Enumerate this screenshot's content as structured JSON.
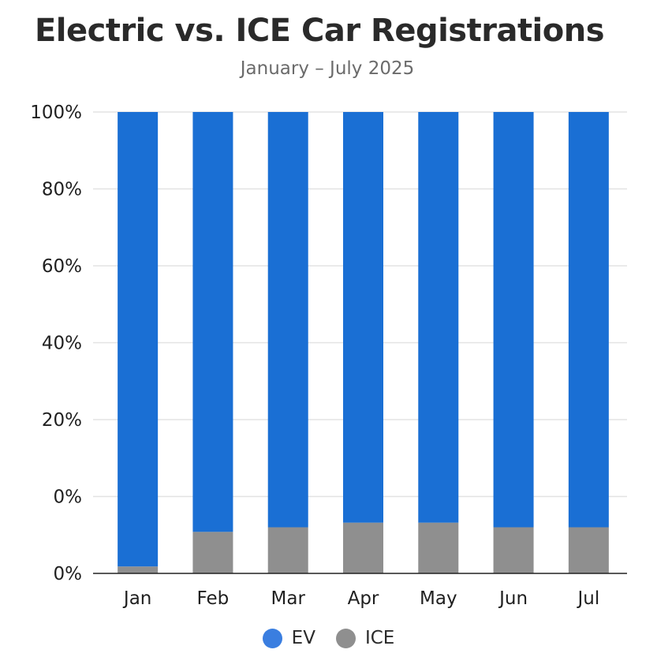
{
  "chart_data": {
    "type": "bar",
    "stacked": true,
    "title": "Electric vs. ICE Car Registrations",
    "subtitle": "January – July 2025",
    "categories": [
      "Jan",
      "Feb",
      "Mar",
      "Apr",
      "May",
      "Jun",
      "Jul"
    ],
    "series": [
      {
        "name": "ICE",
        "color": "#8f8f8f",
        "values": [
          1.5,
          9,
          10,
          11,
          11,
          10,
          10
        ]
      },
      {
        "name": "EV",
        "color": "#1a6fd4",
        "values": [
          98.5,
          91,
          90,
          89,
          89,
          90,
          90
        ]
      }
    ],
    "y_tick_labels": [
      "0%",
      "0%",
      "20%",
      "40%",
      "60%",
      "80%",
      "100%"
    ],
    "ylim": [
      0,
      100
    ],
    "grid": true,
    "legend": "bottom-center"
  }
}
